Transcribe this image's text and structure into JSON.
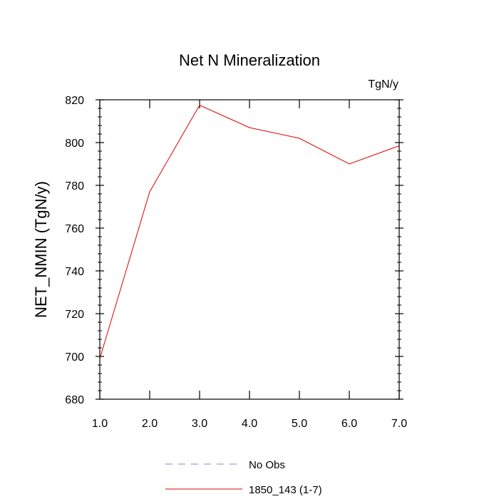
{
  "chart_data": {
    "type": "line",
    "title": "Net N Mineralization",
    "units_label": "TgN/y",
    "xlabel": "",
    "ylabel": "NET_NMIN  (TgN/y)",
    "xlim": [
      1.0,
      7.0
    ],
    "ylim": [
      680,
      820
    ],
    "x_ticks": [
      "1.0",
      "2.0",
      "3.0",
      "4.0",
      "5.0",
      "6.0",
      "7.0"
    ],
    "y_ticks": [
      "680",
      "700",
      "720",
      "740",
      "760",
      "780",
      "800",
      "820"
    ],
    "grid": false,
    "legend_position": "bottom-center",
    "series": [
      {
        "name": "No Obs",
        "color": "#8080e0",
        "dash": "dashed",
        "x": [],
        "values": []
      },
      {
        "name": "1850_143 (1-7)",
        "color": "#e00000",
        "dash": "solid",
        "x": [
          1,
          2,
          3,
          4,
          5,
          6,
          7
        ],
        "values": [
          699,
          777,
          817.5,
          807,
          802,
          790,
          798.5
        ]
      }
    ]
  }
}
